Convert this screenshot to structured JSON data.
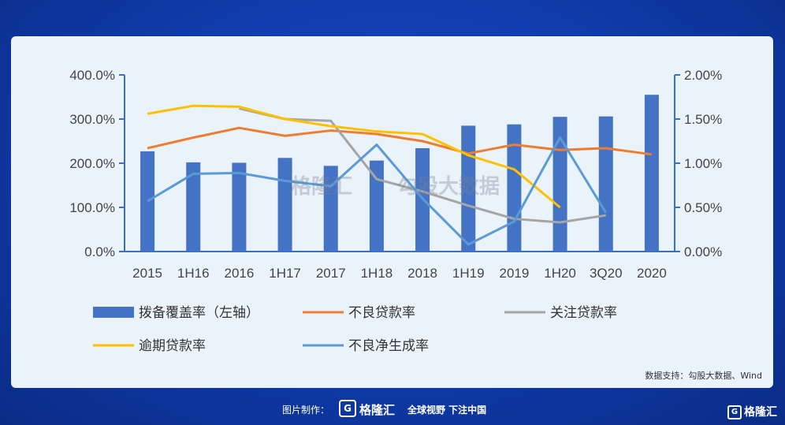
{
  "chart_data": {
    "type": "bar",
    "categories": [
      "2015",
      "1H16",
      "2016",
      "1H17",
      "2017",
      "1H18",
      "2018",
      "1H19",
      "2019",
      "1H20",
      "3Q20",
      "2020"
    ],
    "left_axis": {
      "ticks": [
        "0.0%",
        "100.0%",
        "200.0%",
        "300.0%",
        "400.0%"
      ],
      "ylim": [
        0,
        400
      ]
    },
    "right_axis": {
      "ticks": [
        "0.00%",
        "0.50%",
        "1.00%",
        "1.50%",
        "2.00%"
      ],
      "ylim": [
        0,
        2.0
      ]
    },
    "grid": false,
    "legend_position": "bottom",
    "series": [
      {
        "name": "拨备覆盖率（左轴）",
        "type": "bar",
        "axis": "left",
        "color": "#4472c4",
        "values": [
          227,
          202,
          201,
          212,
          194,
          206,
          234,
          285,
          288,
          305,
          306,
          355
        ]
      },
      {
        "name": "不良贷款率",
        "type": "line",
        "axis": "right",
        "color": "#ed7d31",
        "values": [
          1.17,
          1.29,
          1.4,
          1.31,
          1.37,
          1.33,
          1.25,
          1.11,
          1.21,
          1.15,
          1.17,
          1.1
        ]
      },
      {
        "name": "关注贷款率",
        "type": "line",
        "axis": "right",
        "color": "#a5a5a5",
        "values": [
          null,
          null,
          1.62,
          1.5,
          1.48,
          0.82,
          0.68,
          0.52,
          0.37,
          0.33,
          0.41,
          null
        ]
      },
      {
        "name": "逾期贷款率",
        "type": "line",
        "axis": "right",
        "color": "#ffc000",
        "values": [
          1.56,
          1.65,
          1.64,
          1.5,
          1.42,
          1.36,
          1.33,
          1.09,
          0.93,
          0.5,
          null,
          null
        ]
      },
      {
        "name": "不良净生成率",
        "type": "line",
        "axis": "right",
        "color": "#5b9bd5",
        "values": [
          0.57,
          0.88,
          0.89,
          0.8,
          0.74,
          1.21,
          0.6,
          0.08,
          0.34,
          1.29,
          0.44,
          null
        ]
      }
    ]
  },
  "source": "数据支持：勾股大数据、Wind",
  "watermarks": {
    "left": "格隆汇",
    "right": "勾股大数据"
  },
  "footer": {
    "credit": "图片制作：",
    "brand": "格隆汇",
    "logo_letter": "G",
    "slogan": "全球视野 下注中国",
    "corner_brand": "格隆汇"
  }
}
